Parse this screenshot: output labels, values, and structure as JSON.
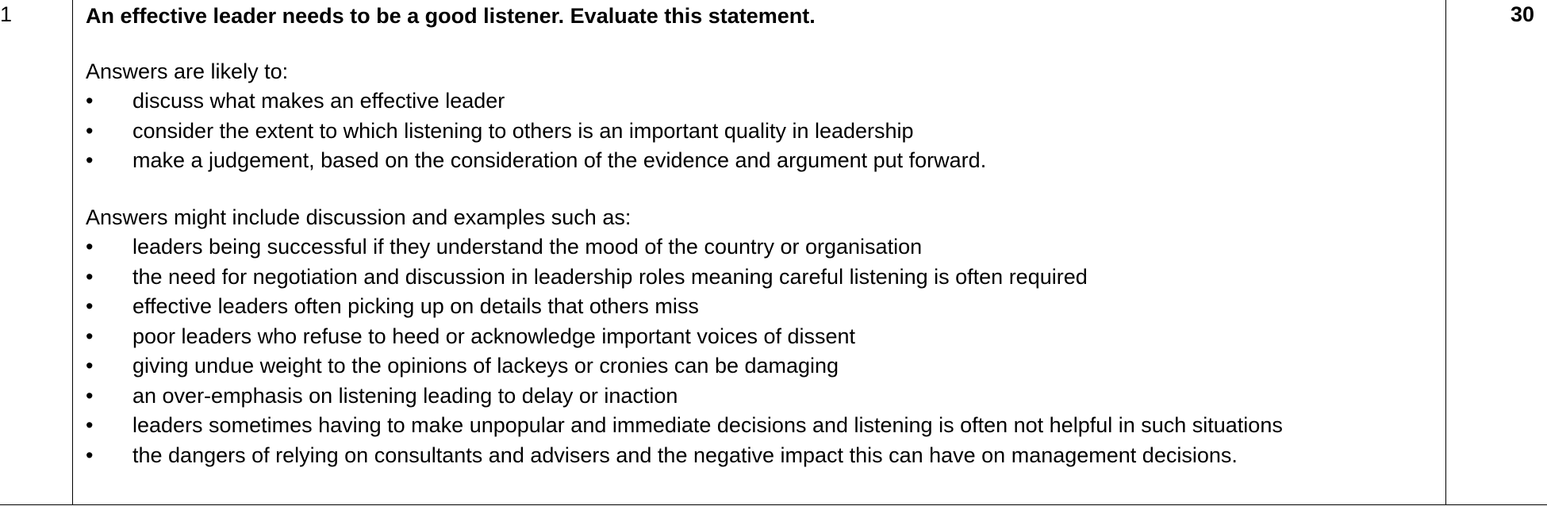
{
  "question": {
    "number": "1",
    "prompt": "An effective leader needs to be a good listener. Evaluate this statement.",
    "marks": "30"
  },
  "likely": {
    "intro": "Answers are likely to:",
    "items": [
      "discuss what makes an effective leader",
      "consider the extent to which listening to others is an important quality in leadership",
      "make a judgement, based on the consideration of the evidence and argument put forward."
    ]
  },
  "examples": {
    "intro": "Answers might include discussion and examples such as:",
    "items": [
      "leaders being successful if they understand the mood of the country or organisation",
      "the need for negotiation and discussion in leadership roles meaning careful listening is often required",
      "effective leaders often picking up on details that others miss",
      "poor leaders who refuse to heed or acknowledge important voices of dissent",
      "giving undue weight to the opinions of lackeys or cronies can be damaging",
      "an over-emphasis on listening leading to delay or inaction",
      "leaders sometimes having to make unpopular and immediate decisions and listening is often not helpful in such situations",
      "the dangers of relying on consultants and advisers and the negative impact this can have on management decisions."
    ]
  },
  "bullet_glyph": "•"
}
